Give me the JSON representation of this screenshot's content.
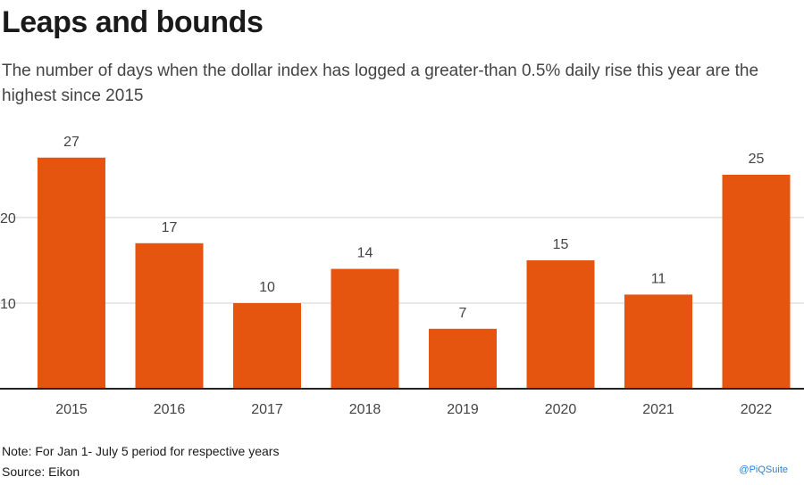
{
  "header": {
    "title": "Leaps and bounds",
    "subtitle": "The number of days when the dollar index has logged a greater-than 0.5% daily rise this year are the highest since 2015"
  },
  "footer": {
    "note": "Note: For Jan 1- July 5 period for respective years",
    "source": "Source: Eikon",
    "credit": "@PiQSuite"
  },
  "colors": {
    "bar": "#e5550f",
    "grid": "#d0d0d0",
    "axis": "#222222",
    "label": "#444444"
  },
  "chart_data": {
    "type": "bar",
    "title": "Leaps and bounds",
    "xlabel": "",
    "ylabel": "",
    "categories": [
      "2015",
      "2016",
      "2017",
      "2018",
      "2019",
      "2020",
      "2021",
      "2022"
    ],
    "values": [
      27,
      17,
      10,
      14,
      7,
      15,
      11,
      25
    ],
    "yticks": [
      10,
      20
    ],
    "ytick_labels": [
      "10",
      "20"
    ],
    "ylim": [
      0,
      30
    ],
    "grid": true,
    "legend": "none"
  }
}
